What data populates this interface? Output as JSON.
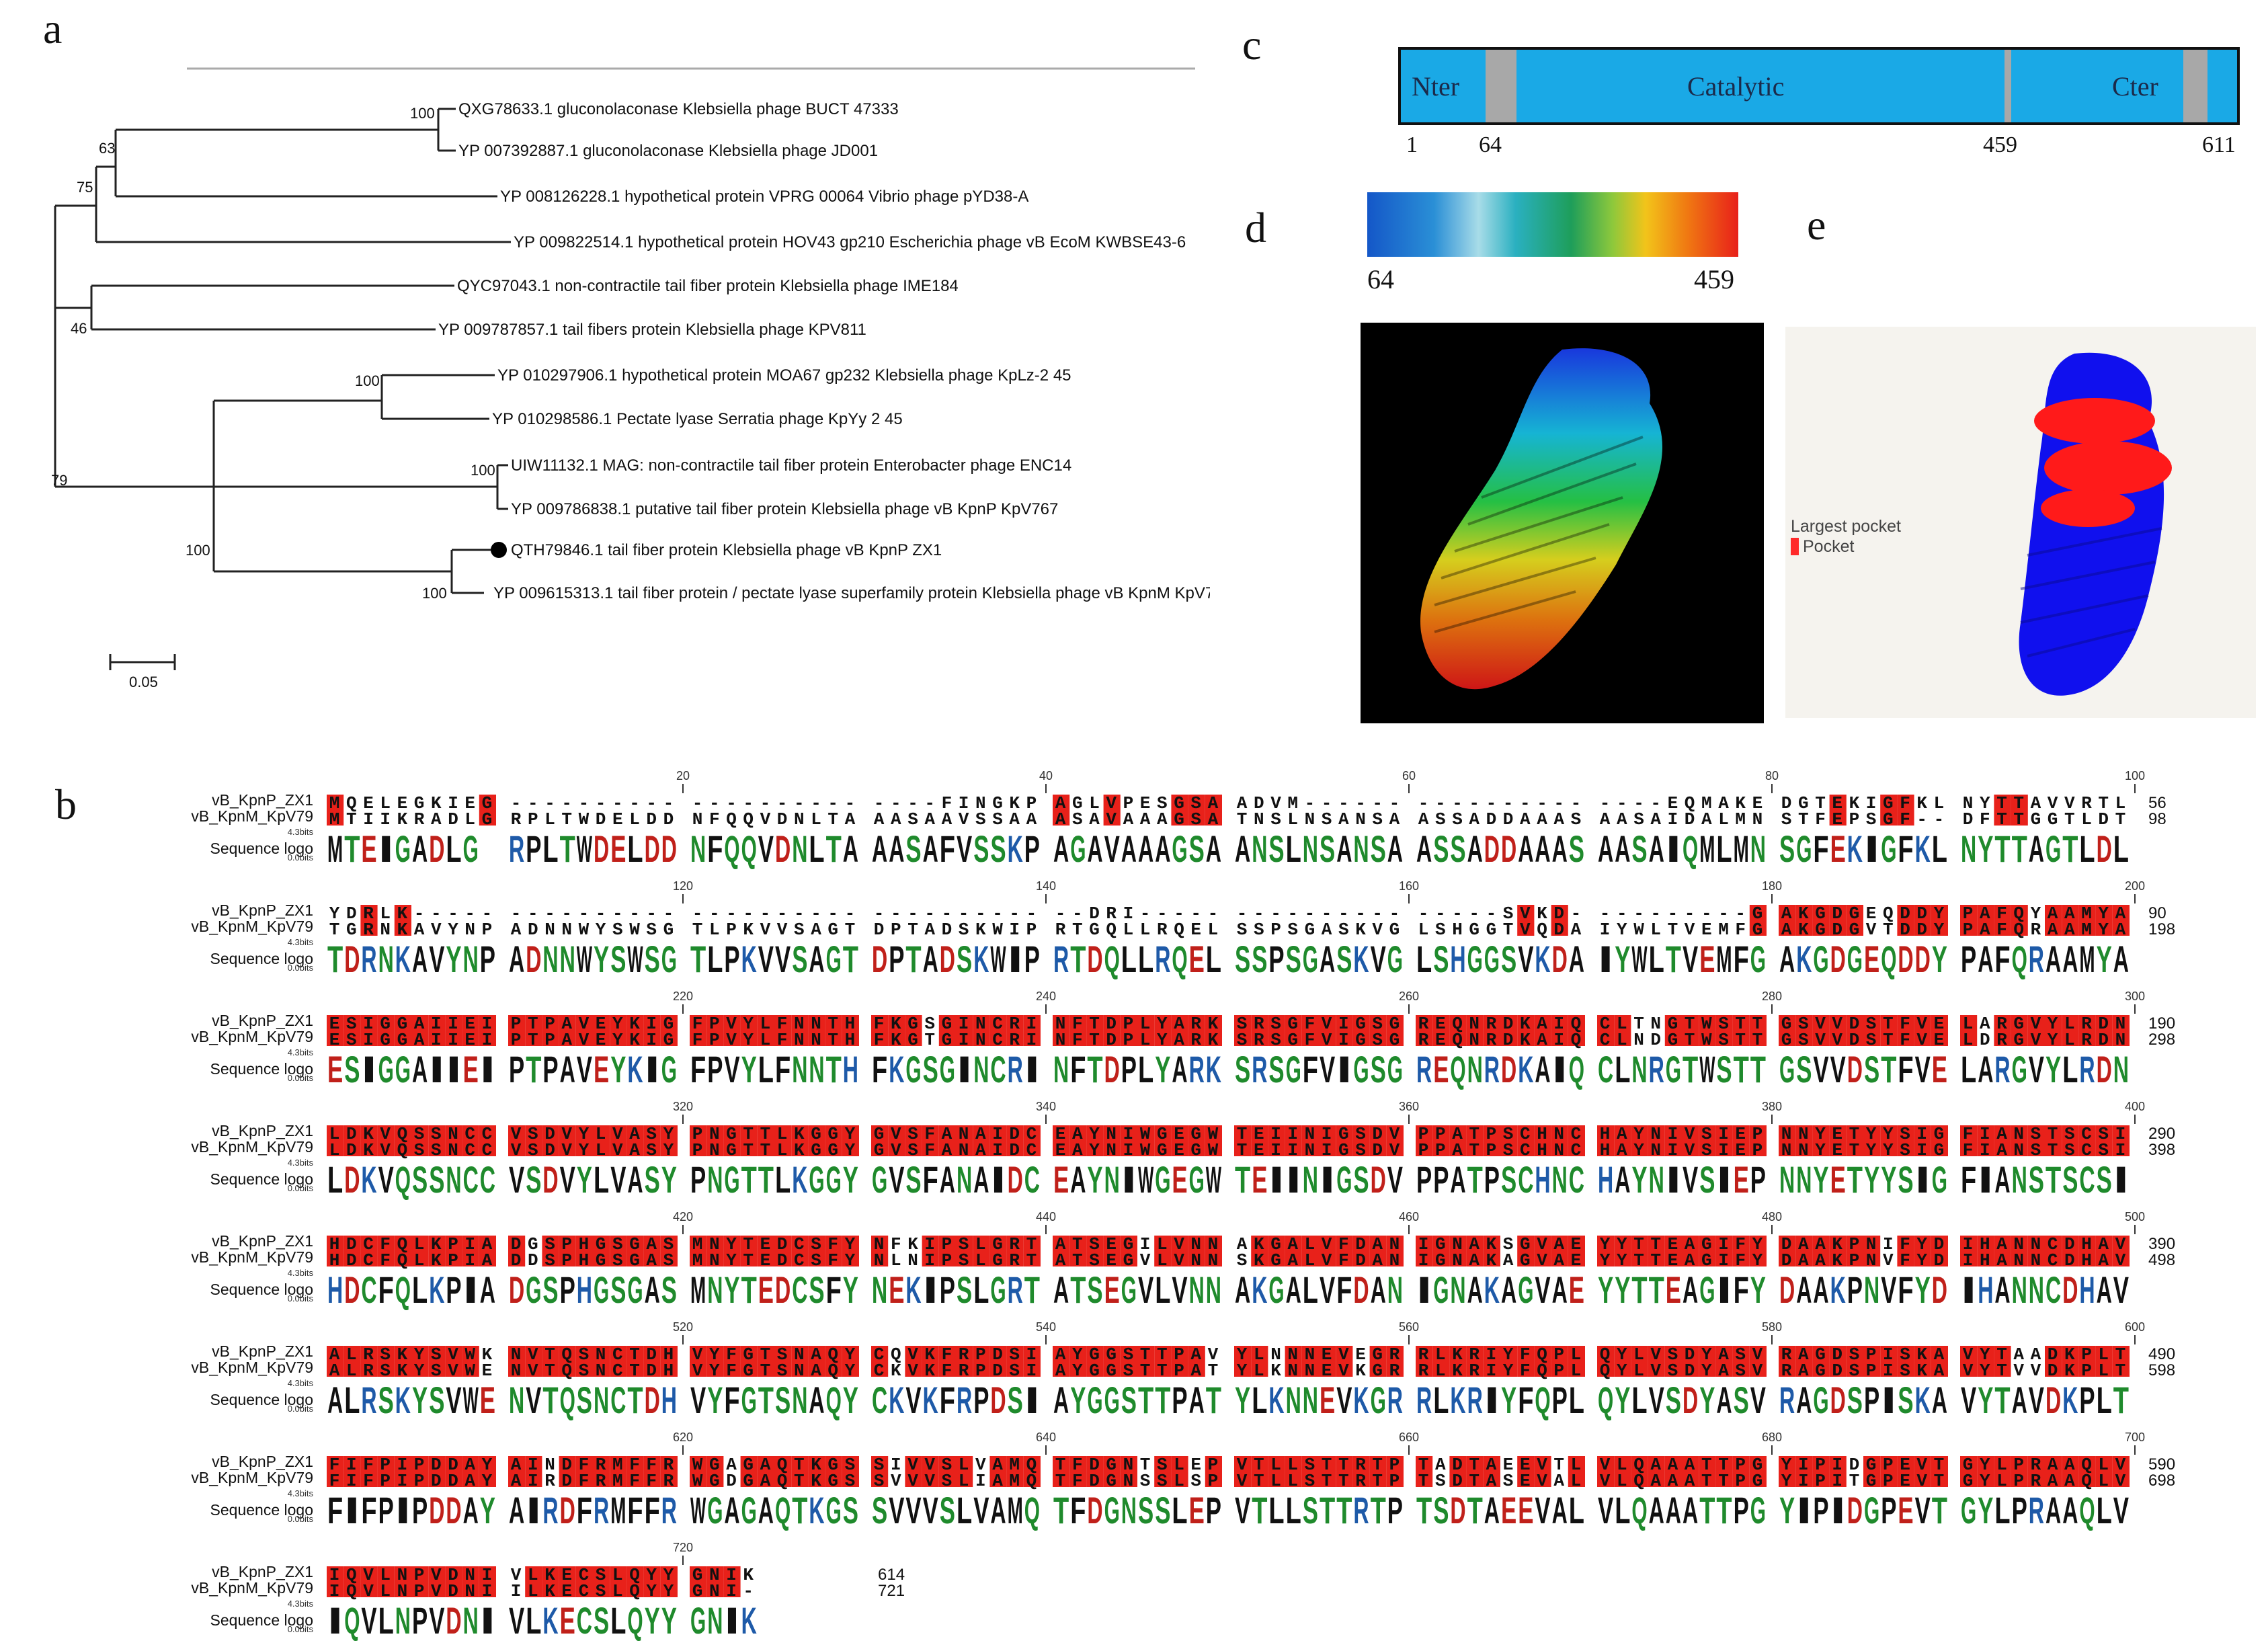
{
  "panels": {
    "a": "a",
    "b": "b",
    "c": "c",
    "d": "d",
    "e": "e"
  },
  "tree": {
    "taxa": [
      "QXG78633.1 gluconolaconase Klebsiella phage BUCT 47333",
      "YP 007392887.1 gluconolaconase Klebsiella phage JD001",
      "YP 008126228.1 hypothetical protein VPRG 00064 Vibrio phage pYD38-A",
      "YP 009822514.1 hypothetical protein HOV43 gp210 Escherichia phage vB EcoM KWBSE43-6",
      "QYC97043.1 non-contractile tail fiber protein Klebsiella phage IME184",
      "YP 009787857.1 tail fibers protein Klebsiella phage KPV811",
      "YP 010297906.1 hypothetical protein MOA67 gp232 Klebsiella phage KpLz-2 45",
      "YP 010298586.1 Pectate lyase Serratia phage KpYy 2 45",
      "UIW11132.1 MAG: non-contractile tail fiber protein Enterobacter phage ENC14",
      "YP 009786838.1 putative tail fiber protein Klebsiella phage vB KpnP KpV767",
      "QTH79846.1 tail fiber protein Klebsiella phage vB KpnP ZX1",
      "YP 009615313.1 tail fiber protein / pectate lyase superfamily protein Klebsiella phage vB KpnM KpV79"
    ],
    "bootstrap": [
      "100",
      "63",
      "75",
      "46",
      "100",
      "100",
      "79",
      "100",
      "100"
    ],
    "scale_label": "0.05"
  },
  "domains": {
    "labels": [
      "Nter",
      "Catalytic",
      "Cter"
    ],
    "positions": [
      "1",
      "64",
      "459",
      "611"
    ]
  },
  "gradient": {
    "min": "64",
    "max": "459"
  },
  "pocket_legend": {
    "title": "Largest pocket",
    "item": "Pocket"
  },
  "alignment": {
    "row1_name": "vB_KpnP_ZX1",
    "row2_name": "vB_KpnM_KpV79",
    "logo_name": "Sequence logo",
    "bits_top": "4.3bits",
    "bits_bottom": "0.0bits",
    "blocks": [
      {
        "ruler": [
          "20",
          "40",
          "60",
          "80",
          "100"
        ],
        "s1": "MQELEGKIEG ---------- ---------- ----FINGKP AGLVPESGSA ADVM------ ---------- ----EQMAKE DGTEKIGFKL NYTTAVVRTL",
        "s2": "MTIIKRADLG RPLTWDELDD NFQQVDNLTA AASAAVSSAA ASAVAAAGSA TNSLNSANSA ASSADDAAAS AASAIDALMN STFEPSGF-- DFTTGGTLDT",
        "logo": "MTEIGADLG RPLTWDELDD NFQQVDNLTA AASAFVSSKP AGAVAAAGSA ANSLNSANSA ASSADDAAAS AASAIQMLMN SGFEKIGFKL NYTTAGTLDL",
        "e1": "56",
        "e2": "98"
      },
      {
        "ruler": [
          "120",
          "140",
          "160",
          "180",
          "200"
        ],
        "s1": "YDRLK----- ---------- ---------- ---------- --DRI----- ---------- -----SVKD- ---------G AKGDGEQDDY PAFQYAAMYA",
        "s2": "TGRNKAVYNP ADNNWYSWSG TLPKVVSAGT DPTADSKWIP RTGQLLRQEL SSPSGASKVG LSHGGTVQDA IYWLTVEMFG AKGDGVTDDY PAFQRAAMYA",
        "logo": "TDRNKAVYNP ADNNWYSWSG TLPKVVSAGT DPTADSKWIP RTDQLLRQEL SSPSGASKVG LSHGGSVKDA IYWLTVEMFG AKGDGEQDDY PAFQRAAMYA",
        "e1": "90",
        "e2": "198"
      },
      {
        "ruler": [
          "220",
          "240",
          "260",
          "280",
          "300"
        ],
        "s1": "ESIGGAIIEI PTPAVEYKIG FPVYLFNNTH FKGSGINCRI NFTDPLYARK SRSGFVIGSG REQNRDKAIQ CLTNGTWSTT GSVVDSTFVE LARGVYLRDN",
        "s2": "ESIGGAIIEI PTPAVEYKIG FPVYLFNNTH FKGTGINCRI NFTDPLYARK SRSGFVIGSG REQNRDKAIQ CLNDGTWSTT GSVVDSTFVE LDRGVYLRDN",
        "logo": "ESIGGAIIEI PTPAVEYKIG FPVYLFNNTH FKGSGINCRI NFTDPLYARK SRSGFVIGSG REQNRDKAIQ CLNRGTWSTT GSVVDSTFVE LARGVYLRDN",
        "e1": "190",
        "e2": "298"
      },
      {
        "ruler": [
          "320",
          "340",
          "360",
          "380",
          "400"
        ],
        "s1": "LDKVQSSNCC VSDVYLVASY PNGTTLKGGY GVSFANAIDC EAYNIWGEGW TEIINIGSDV PPATPSCHNC HAYNIVSIEP NNYETYYSIG FIANSTSCSI",
        "s2": "LDKVQSSNCC VSDVYLVASY PNGTTLKGGY GVSFANAIDC EAYNIWGEGW TEIINIGSDV PPATPSCHNC HAYNIVSIEP NNYETYYSIG FIANSTSCSI",
        "logo": "LDKVQSSNCC VSDVYLVASY PNGTTLKGGY GVSFANAIDC EAYNIWGEGW TEIINIGSDV PPATPSCHNC HAYNIVSIEP NNYETYYSIG FIANSTSCSI",
        "e1": "290",
        "e2": "398"
      },
      {
        "ruler": [
          "420",
          "440",
          "460",
          "480",
          "500"
        ],
        "s1": "HDCFQLKPIA DGSPHGSGAS MNYTEDCSFY NFKIPSLGRT ATSEGILVNN AKGALVFDAN IGNAKSGVAE YYTTEAGIFY DAAKPNIFYD IHANNCDHAV",
        "s2": "HDCFQLKPIA DDSPHGSGAS MNYTEDCSFY NLNIPSLGRT ATSEGVLVNN SKGALVFDAN IGNAKAGVAE YYTTEAGIFY DAAKPNVFYD IHANNCDHAV",
        "logo": "HDCFQLKPIA DGSPHGSGAS MNYTEDCSFY NEKIPSLGRT ATSEGVLVNN AKGALVFDAN IGNAKAGVAE YYTTEAGIFY DAAKPNVFYD IHANNCDHAV",
        "e1": "390",
        "e2": "498"
      },
      {
        "ruler": [
          "520",
          "540",
          "560",
          "580",
          "600"
        ],
        "s1": "ALRSKYSVWK NVTQSNCTDH VYFGTSNAQY CQVKFRPDSI AYGGSTTPAV YLNNNEVEGR RLKRIYFQPL QYLVSDYASV RAGDSPISKA VYTAADKPLT",
        "s2": "ALRSKYSVWE NVTQSNCTDH VYFGTSNAQY CKVKFRPDSI AYGGSTTPAT YLKNNEVKGR RLKRIYFQPL QYLVSDYASV RAGDSPISKA VYTVVDKPLT",
        "logo": "ALRSKYSVWE NVTQSNCTDH VYFGTSNAQY CKVKFRPDSI AYGGSTTPAT YLKNNEVKGR RLKRIYFQPL QYLVSDYASV RAGDSPISKA VYTAVDKPLT",
        "e1": "490",
        "e2": "598"
      },
      {
        "ruler": [
          "620",
          "640",
          "660",
          "680",
          "700"
        ],
        "s1": "FIFPIPDDAY AINDFRMFFR WGAGAQTKGS SIVVSLVAMQ TFDGNTSLEP VTLLSTTRTP TADTAEEVTL VLQAAATTPG YIPIDGPEVT GYLPRAAQLV",
        "s2": "FIFPIPDDAY AIRDFRMFFR WGDGAQTKGS SVVVSLIAMQ TFDGNSSLSP VTLLSTTRTP TSDTASEVAL VLQAAATTPG YIPITGPEVT GYLPRAAQLV",
        "logo": "FIFPIPDDAY AIRDFRMFFR WGAGAQTKGS SVVVSLVAMQ TFDGNSSLEP VTLLSTTRTP TSDTAEEVAL VLQAAATTPG YIPIDGPEVT GYLPRAAQLV",
        "e1": "590",
        "e2": "698"
      },
      {
        "ruler": [
          "720"
        ],
        "s1": "IQVLNPVDNI VLKECSLQYY GNIK",
        "s2": "IQVLNPVDNI ILKECSLQYY GNI-",
        "logo": "IQVLNPVDNI VLKECSLQYY GNIK",
        "e1": "614",
        "e2": "721"
      }
    ]
  },
  "colors": {
    "domain_fill": "#1aa9e6",
    "linker_fill": "#a8a8a8",
    "conserved_red": "#e8211a",
    "logo_black": "#111111",
    "logo_green": "#1f8a2c",
    "logo_blue": "#1e5aa8",
    "logo_red": "#c0201a",
    "pocket_red": "#ff1a1a",
    "struct_blue": "#1010ee"
  }
}
